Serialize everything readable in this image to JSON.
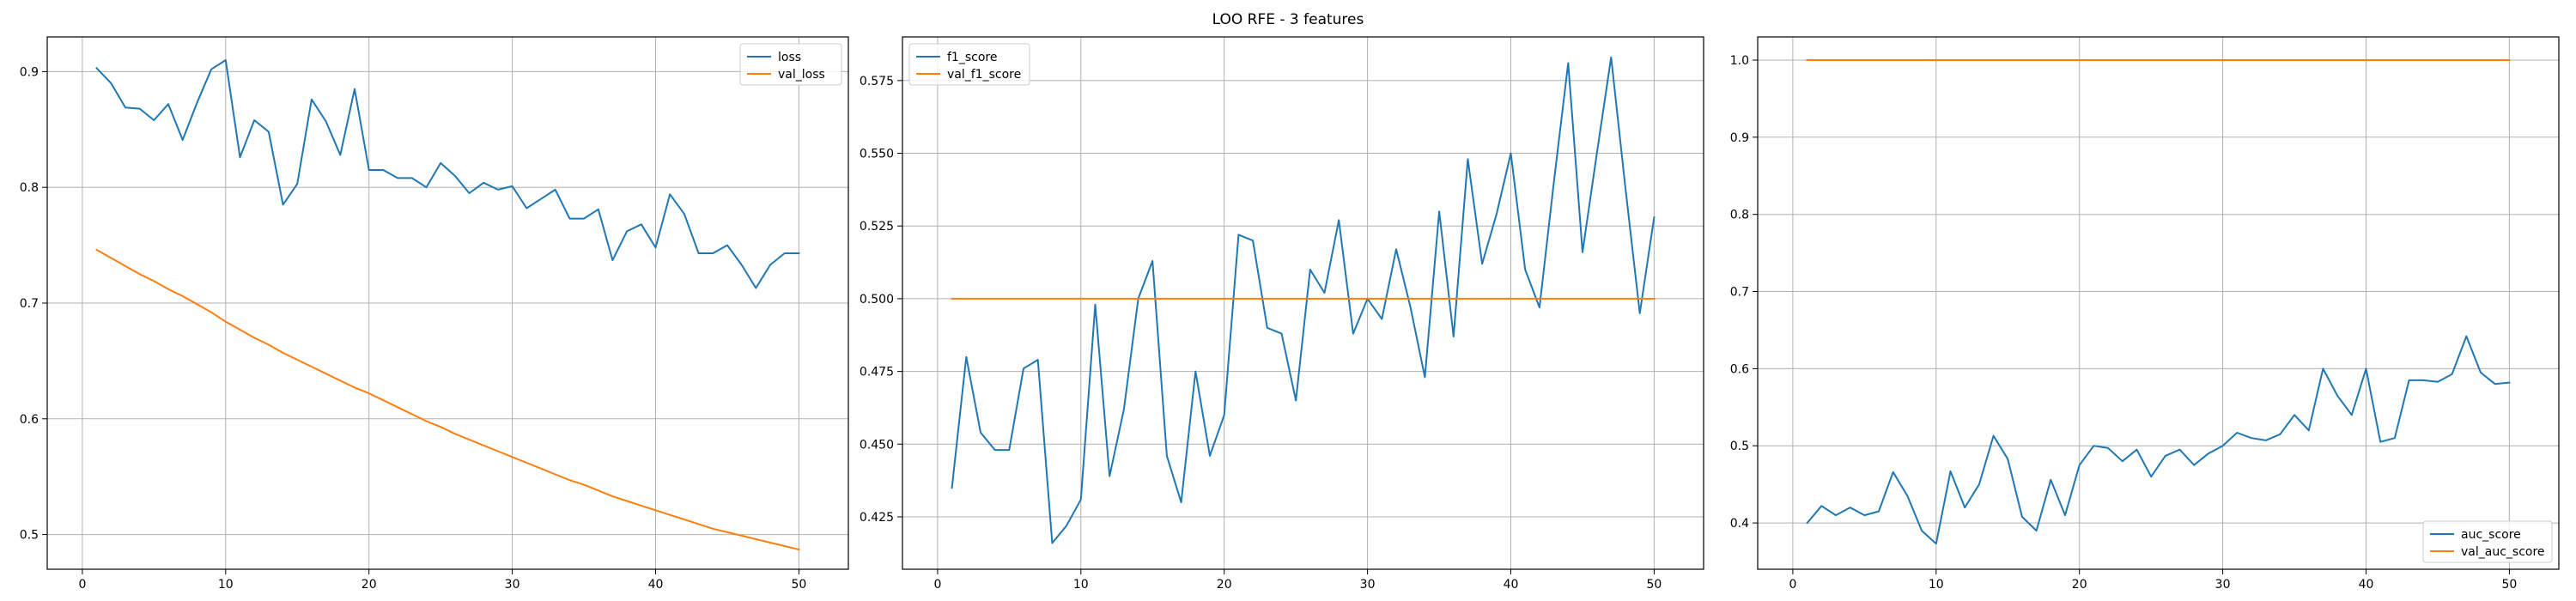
{
  "suptitle": "LOO RFE - 3 features",
  "colors": {
    "blue": "#1f77b4",
    "orange": "#ff7f0e",
    "grid": "#b0b0b0",
    "axes": "#000000"
  },
  "chart_data": [
    {
      "type": "line",
      "xlim": [
        -2.45,
        53.45
      ],
      "ylim": [
        0.47,
        0.93
      ],
      "xticks": [
        0,
        10,
        20,
        30,
        40,
        50
      ],
      "xtick_labels": [
        "0",
        "10",
        "20",
        "30",
        "40",
        "50"
      ],
      "yticks": [
        0.5,
        0.6,
        0.7,
        0.8,
        0.9
      ],
      "ytick_labels": [
        "0.5",
        "0.6",
        "0.7",
        "0.8",
        "0.9"
      ],
      "grid": true,
      "legend_position": "top-right",
      "x": [
        1,
        2,
        3,
        4,
        5,
        6,
        7,
        8,
        9,
        10,
        11,
        12,
        13,
        14,
        15,
        16,
        17,
        18,
        19,
        20,
        21,
        22,
        23,
        24,
        25,
        26,
        27,
        28,
        29,
        30,
        31,
        32,
        33,
        34,
        35,
        36,
        37,
        38,
        39,
        40,
        41,
        42,
        43,
        44,
        45,
        46,
        47,
        48,
        49,
        50
      ],
      "series": [
        {
          "name": "loss",
          "color": "#1f77b4",
          "values": [
            0.903,
            0.89,
            0.869,
            0.868,
            0.858,
            0.872,
            0.841,
            0.873,
            0.902,
            0.91,
            0.826,
            0.858,
            0.848,
            0.785,
            0.803,
            0.876,
            0.857,
            0.828,
            0.885,
            0.815,
            0.815,
            0.808,
            0.808,
            0.8,
            0.821,
            0.81,
            0.795,
            0.804,
            0.798,
            0.801,
            0.782,
            0.79,
            0.798,
            0.773,
            0.773,
            0.781,
            0.737,
            0.762,
            0.768,
            0.748,
            0.794,
            0.777,
            0.743,
            0.743,
            0.75,
            0.733,
            0.713,
            0.733,
            0.743,
            0.743
          ]
        },
        {
          "name": "val_loss",
          "color": "#ff7f0e",
          "values": [
            0.746,
            0.739,
            0.732,
            0.725,
            0.719,
            0.712,
            0.706,
            0.699,
            0.692,
            0.684,
            0.677,
            0.67,
            0.664,
            0.657,
            0.651,
            0.645,
            0.639,
            0.633,
            0.627,
            0.622,
            0.616,
            0.61,
            0.604,
            0.598,
            0.593,
            0.587,
            0.582,
            0.577,
            0.572,
            0.567,
            0.562,
            0.557,
            0.552,
            0.547,
            0.543,
            0.538,
            0.533,
            0.529,
            0.525,
            0.521,
            0.517,
            0.513,
            0.509,
            0.505,
            0.502,
            0.499,
            0.496,
            0.493,
            0.49,
            0.487
          ]
        }
      ]
    },
    {
      "type": "line",
      "xlim": [
        -2.45,
        53.45
      ],
      "ylim": [
        0.407,
        0.59
      ],
      "xticks": [
        0,
        10,
        20,
        30,
        40,
        50
      ],
      "xtick_labels": [
        "0",
        "10",
        "20",
        "30",
        "40",
        "50"
      ],
      "yticks": [
        0.425,
        0.45,
        0.475,
        0.5,
        0.525,
        0.55,
        0.575
      ],
      "ytick_labels": [
        "0.425",
        "0.450",
        "0.475",
        "0.500",
        "0.525",
        "0.550",
        "0.575"
      ],
      "grid": true,
      "legend_position": "top-left",
      "x": [
        1,
        2,
        3,
        4,
        5,
        6,
        7,
        8,
        9,
        10,
        11,
        12,
        13,
        14,
        15,
        16,
        17,
        18,
        19,
        20,
        21,
        22,
        23,
        24,
        25,
        26,
        27,
        28,
        29,
        30,
        31,
        32,
        33,
        34,
        35,
        36,
        37,
        38,
        39,
        40,
        41,
        42,
        43,
        44,
        45,
        46,
        47,
        48,
        49,
        50
      ],
      "series": [
        {
          "name": "f1_score",
          "color": "#1f77b4",
          "values": [
            0.435,
            0.48,
            0.454,
            0.448,
            0.448,
            0.476,
            0.479,
            0.416,
            0.422,
            0.431,
            0.498,
            0.439,
            0.462,
            0.5,
            0.513,
            0.446,
            0.43,
            0.475,
            0.446,
            0.46,
            0.522,
            0.52,
            0.49,
            0.488,
            0.465,
            0.51,
            0.502,
            0.527,
            0.488,
            0.5,
            0.493,
            0.517,
            0.497,
            0.473,
            0.53,
            0.487,
            0.548,
            0.512,
            0.529,
            0.55,
            0.51,
            0.497,
            0.54,
            0.581,
            0.516,
            0.55,
            0.583,
            0.538,
            0.495,
            0.528
          ]
        },
        {
          "name": "val_f1_score",
          "color": "#ff7f0e",
          "values": [
            0.5,
            0.5,
            0.5,
            0.5,
            0.5,
            0.5,
            0.5,
            0.5,
            0.5,
            0.5,
            0.5,
            0.5,
            0.5,
            0.5,
            0.5,
            0.5,
            0.5,
            0.5,
            0.5,
            0.5,
            0.5,
            0.5,
            0.5,
            0.5,
            0.5,
            0.5,
            0.5,
            0.5,
            0.5,
            0.5,
            0.5,
            0.5,
            0.5,
            0.5,
            0.5,
            0.5,
            0.5,
            0.5,
            0.5,
            0.5,
            0.5,
            0.5,
            0.5,
            0.5,
            0.5,
            0.5,
            0.5,
            0.5,
            0.5,
            0.5
          ]
        }
      ]
    },
    {
      "type": "line",
      "xlim": [
        -2.45,
        53.45
      ],
      "ylim": [
        0.34,
        1.03
      ],
      "xticks": [
        0,
        10,
        20,
        30,
        40,
        50
      ],
      "xtick_labels": [
        "0",
        "10",
        "20",
        "30",
        "40",
        "50"
      ],
      "yticks": [
        0.4,
        0.5,
        0.6,
        0.7,
        0.8,
        0.9,
        1.0
      ],
      "ytick_labels": [
        "0.4",
        "0.5",
        "0.6",
        "0.7",
        "0.8",
        "0.9",
        "1.0"
      ],
      "grid": true,
      "legend_position": "bottom-right",
      "x": [
        1,
        2,
        3,
        4,
        5,
        6,
        7,
        8,
        9,
        10,
        11,
        12,
        13,
        14,
        15,
        16,
        17,
        18,
        19,
        20,
        21,
        22,
        23,
        24,
        25,
        26,
        27,
        28,
        29,
        30,
        31,
        32,
        33,
        34,
        35,
        36,
        37,
        38,
        39,
        40,
        41,
        42,
        43,
        44,
        45,
        46,
        47,
        48,
        49,
        50
      ],
      "series": [
        {
          "name": "auc_score",
          "color": "#1f77b4",
          "values": [
            0.4,
            0.422,
            0.41,
            0.42,
            0.41,
            0.415,
            0.466,
            0.435,
            0.39,
            0.373,
            0.467,
            0.42,
            0.45,
            0.513,
            0.483,
            0.408,
            0.39,
            0.456,
            0.41,
            0.475,
            0.5,
            0.497,
            0.48,
            0.495,
            0.46,
            0.487,
            0.495,
            0.475,
            0.49,
            0.5,
            0.517,
            0.51,
            0.507,
            0.515,
            0.54,
            0.52,
            0.6,
            0.565,
            0.54,
            0.6,
            0.505,
            0.51,
            0.585,
            0.585,
            0.583,
            0.593,
            0.642,
            0.595,
            0.58,
            0.582
          ]
        },
        {
          "name": "val_auc_score",
          "color": "#ff7f0e",
          "values": [
            1.0,
            1.0,
            1.0,
            1.0,
            1.0,
            1.0,
            1.0,
            1.0,
            1.0,
            1.0,
            1.0,
            1.0,
            1.0,
            1.0,
            1.0,
            1.0,
            1.0,
            1.0,
            1.0,
            1.0,
            1.0,
            1.0,
            1.0,
            1.0,
            1.0,
            1.0,
            1.0,
            1.0,
            1.0,
            1.0,
            1.0,
            1.0,
            1.0,
            1.0,
            1.0,
            1.0,
            1.0,
            1.0,
            1.0,
            1.0,
            1.0,
            1.0,
            1.0,
            1.0,
            1.0,
            1.0,
            1.0,
            1.0,
            1.0,
            1.0
          ]
        }
      ]
    }
  ]
}
